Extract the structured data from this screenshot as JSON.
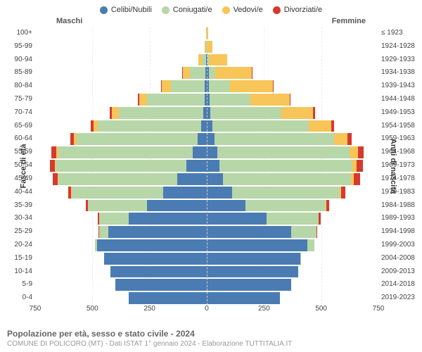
{
  "legend": [
    {
      "label": "Celibi/Nubili",
      "color": "#4a7cb3"
    },
    {
      "label": "Coniugati/e",
      "color": "#b7d7a8"
    },
    {
      "label": "Vedovi/e",
      "color": "#f7c558"
    },
    {
      "label": "Divorziati/e",
      "color": "#d63a2d"
    }
  ],
  "headers": {
    "male": "Maschi",
    "female": "Femmine"
  },
  "axis_titles": {
    "left": "Fasce di età",
    "right": "Anni di nascita"
  },
  "x_axis": {
    "max": 750,
    "ticks": [
      750,
      500,
      250,
      0,
      250,
      500,
      750
    ]
  },
  "colors": {
    "single": "#4a7cb3",
    "married": "#b7d7a8",
    "widowed": "#f7c558",
    "divorced": "#d63a2d",
    "grid": "#eeeeee",
    "center": "#cccccc",
    "background": "#ffffff"
  },
  "rows": [
    {
      "age": "100+",
      "birth": "≤ 1923",
      "m": {
        "s": 0,
        "m": 0,
        "w": 2,
        "d": 0
      },
      "f": {
        "s": 0,
        "m": 0,
        "w": 5,
        "d": 0
      }
    },
    {
      "age": "95-99",
      "birth": "1924-1928",
      "m": {
        "s": 0,
        "m": 3,
        "w": 5,
        "d": 0
      },
      "f": {
        "s": 0,
        "m": 0,
        "w": 25,
        "d": 0
      }
    },
    {
      "age": "90-94",
      "birth": "1929-1933",
      "m": {
        "s": 2,
        "m": 20,
        "w": 15,
        "d": 0
      },
      "f": {
        "s": 3,
        "m": 5,
        "w": 80,
        "d": 0
      }
    },
    {
      "age": "85-89",
      "birth": "1934-1938",
      "m": {
        "s": 5,
        "m": 70,
        "w": 30,
        "d": 2
      },
      "f": {
        "s": 8,
        "m": 30,
        "w": 160,
        "d": 2
      }
    },
    {
      "age": "80-84",
      "birth": "1939-1943",
      "m": {
        "s": 8,
        "m": 150,
        "w": 40,
        "d": 3
      },
      "f": {
        "s": 10,
        "m": 90,
        "w": 190,
        "d": 3
      }
    },
    {
      "age": "75-79",
      "birth": "1944-1948",
      "m": {
        "s": 10,
        "m": 250,
        "w": 35,
        "d": 5
      },
      "f": {
        "s": 12,
        "m": 180,
        "w": 170,
        "d": 5
      }
    },
    {
      "age": "70-74",
      "birth": "1949-1953",
      "m": {
        "s": 15,
        "m": 370,
        "w": 30,
        "d": 8
      },
      "f": {
        "s": 15,
        "m": 310,
        "w": 140,
        "d": 8
      }
    },
    {
      "age": "65-69",
      "birth": "1954-1958",
      "m": {
        "s": 25,
        "m": 450,
        "w": 20,
        "d": 12
      },
      "f": {
        "s": 25,
        "m": 420,
        "w": 100,
        "d": 12
      }
    },
    {
      "age": "60-64",
      "birth": "1959-1963",
      "m": {
        "s": 40,
        "m": 530,
        "w": 12,
        "d": 15
      },
      "f": {
        "s": 35,
        "m": 520,
        "w": 60,
        "d": 18
      }
    },
    {
      "age": "55-59",
      "birth": "1964-1968",
      "m": {
        "s": 60,
        "m": 590,
        "w": 8,
        "d": 20
      },
      "f": {
        "s": 45,
        "m": 580,
        "w": 35,
        "d": 25
      }
    },
    {
      "age": "50-54",
      "birth": "1969-1973",
      "m": {
        "s": 90,
        "m": 570,
        "w": 5,
        "d": 22
      },
      "f": {
        "s": 55,
        "m": 580,
        "w": 20,
        "d": 28
      }
    },
    {
      "age": "45-49",
      "birth": "1974-1978",
      "m": {
        "s": 130,
        "m": 520,
        "w": 3,
        "d": 20
      },
      "f": {
        "s": 70,
        "m": 560,
        "w": 12,
        "d": 28
      }
    },
    {
      "age": "40-44",
      "birth": "1979-1983",
      "m": {
        "s": 190,
        "m": 400,
        "w": 2,
        "d": 15
      },
      "f": {
        "s": 110,
        "m": 470,
        "w": 6,
        "d": 20
      }
    },
    {
      "age": "35-39",
      "birth": "1984-1988",
      "m": {
        "s": 260,
        "m": 260,
        "w": 0,
        "d": 10
      },
      "f": {
        "s": 170,
        "m": 350,
        "w": 3,
        "d": 12
      }
    },
    {
      "age": "30-34",
      "birth": "1989-1993",
      "m": {
        "s": 340,
        "m": 130,
        "w": 0,
        "d": 5
      },
      "f": {
        "s": 260,
        "m": 230,
        "w": 0,
        "d": 8
      }
    },
    {
      "age": "25-29",
      "birth": "1994-1998",
      "m": {
        "s": 430,
        "m": 40,
        "w": 0,
        "d": 2
      },
      "f": {
        "s": 370,
        "m": 110,
        "w": 0,
        "d": 3
      }
    },
    {
      "age": "20-24",
      "birth": "1999-2003",
      "m": {
        "s": 480,
        "m": 8,
        "w": 0,
        "d": 0
      },
      "f": {
        "s": 440,
        "m": 30,
        "w": 0,
        "d": 0
      }
    },
    {
      "age": "15-19",
      "birth": "2004-2008",
      "m": {
        "s": 450,
        "m": 0,
        "w": 0,
        "d": 0
      },
      "f": {
        "s": 410,
        "m": 2,
        "w": 0,
        "d": 0
      }
    },
    {
      "age": "10-14",
      "birth": "2009-2013",
      "m": {
        "s": 420,
        "m": 0,
        "w": 0,
        "d": 0
      },
      "f": {
        "s": 400,
        "m": 0,
        "w": 0,
        "d": 0
      }
    },
    {
      "age": "5-9",
      "birth": "2014-2018",
      "m": {
        "s": 400,
        "m": 0,
        "w": 0,
        "d": 0
      },
      "f": {
        "s": 370,
        "m": 0,
        "w": 0,
        "d": 0
      }
    },
    {
      "age": "0-4",
      "birth": "2019-2023",
      "m": {
        "s": 340,
        "m": 0,
        "w": 0,
        "d": 0
      },
      "f": {
        "s": 320,
        "m": 0,
        "w": 0,
        "d": 0
      }
    }
  ],
  "footer": {
    "title": "Popolazione per età, sesso e stato civile - 2024",
    "sub": "COMUNE DI POLICORO (MT) - Dati ISTAT 1° gennaio 2024 - Elaborazione TUTTITALIA.IT"
  }
}
